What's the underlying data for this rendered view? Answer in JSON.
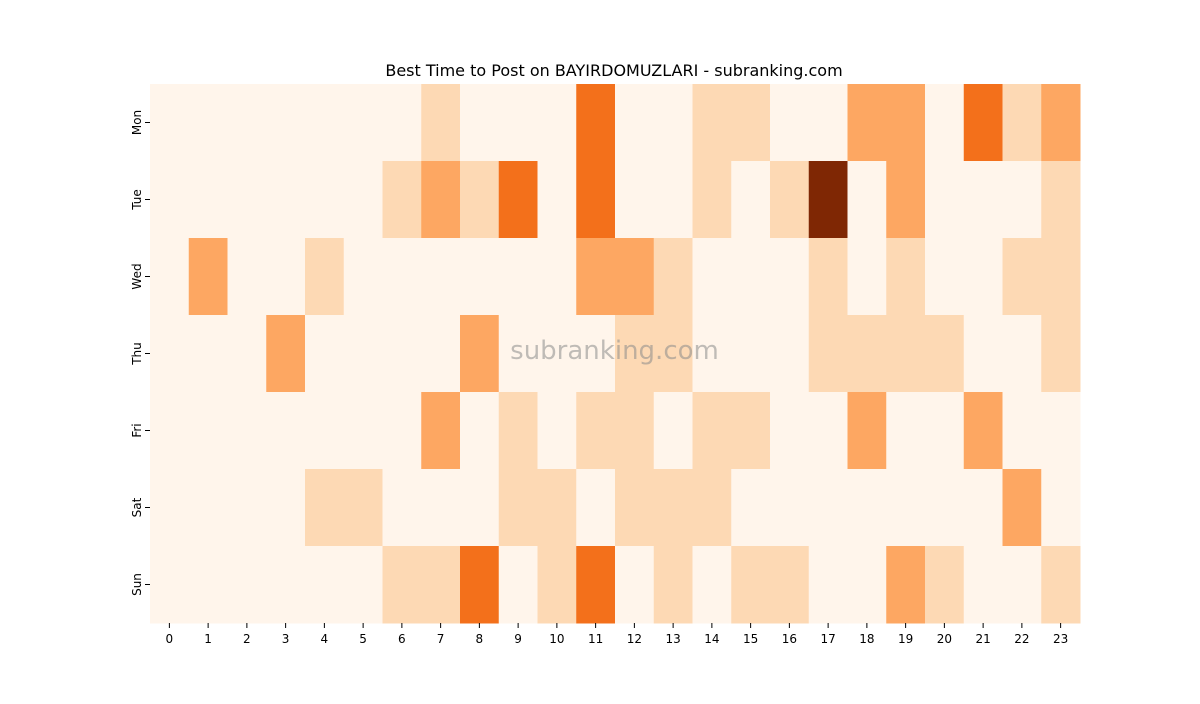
{
  "chart_data": {
    "type": "heatmap",
    "title": "Best Time to Post on BAYIRDOMUZLARI - subranking.com",
    "xlabel": "",
    "ylabel": "",
    "x_categories": [
      "0",
      "1",
      "2",
      "3",
      "4",
      "5",
      "6",
      "7",
      "8",
      "9",
      "10",
      "11",
      "12",
      "13",
      "14",
      "15",
      "16",
      "17",
      "18",
      "19",
      "20",
      "21",
      "22",
      "23"
    ],
    "y_categories": [
      "Mon",
      "Tue",
      "Wed",
      "Thu",
      "Fri",
      "Sat",
      "Sun"
    ],
    "colormap": "Oranges",
    "values": [
      [
        0,
        0,
        0,
        0,
        0,
        0,
        0,
        1,
        0,
        0,
        0,
        3,
        0,
        0,
        1,
        1,
        0,
        0,
        2,
        2,
        0,
        3,
        1,
        2
      ],
      [
        0,
        0,
        0,
        0,
        0,
        0,
        1,
        2,
        1,
        3,
        0,
        3,
        0,
        0,
        1,
        0,
        1,
        5,
        0,
        2,
        0,
        0,
        0,
        1
      ],
      [
        0,
        2,
        0,
        0,
        1,
        0,
        0,
        0,
        0,
        0,
        0,
        2,
        2,
        1,
        0,
        0,
        0,
        1,
        0,
        1,
        0,
        0,
        1,
        1
      ],
      [
        0,
        0,
        0,
        2,
        0,
        0,
        0,
        0,
        2,
        0,
        0,
        0,
        1,
        1,
        0,
        0,
        0,
        1,
        1,
        1,
        1,
        0,
        0,
        1
      ],
      [
        0,
        0,
        0,
        0,
        0,
        0,
        0,
        2,
        0,
        1,
        0,
        1,
        1,
        0,
        1,
        1,
        0,
        0,
        2,
        0,
        0,
        2,
        0,
        0
      ],
      [
        0,
        0,
        0,
        0,
        1,
        1,
        0,
        0,
        0,
        1,
        1,
        0,
        1,
        1,
        1,
        0,
        0,
        0,
        0,
        0,
        0,
        0,
        2,
        0
      ],
      [
        0,
        0,
        0,
        0,
        0,
        0,
        1,
        1,
        3,
        0,
        1,
        3,
        0,
        1,
        0,
        1,
        1,
        0,
        0,
        2,
        1,
        0,
        0,
        1
      ]
    ],
    "level_colors": [
      "#fff5eb",
      "#fdd9b4",
      "#fda762",
      "#f3701b",
      "#f3701b",
      "#7f2704"
    ]
  },
  "watermark": "subranking.com"
}
